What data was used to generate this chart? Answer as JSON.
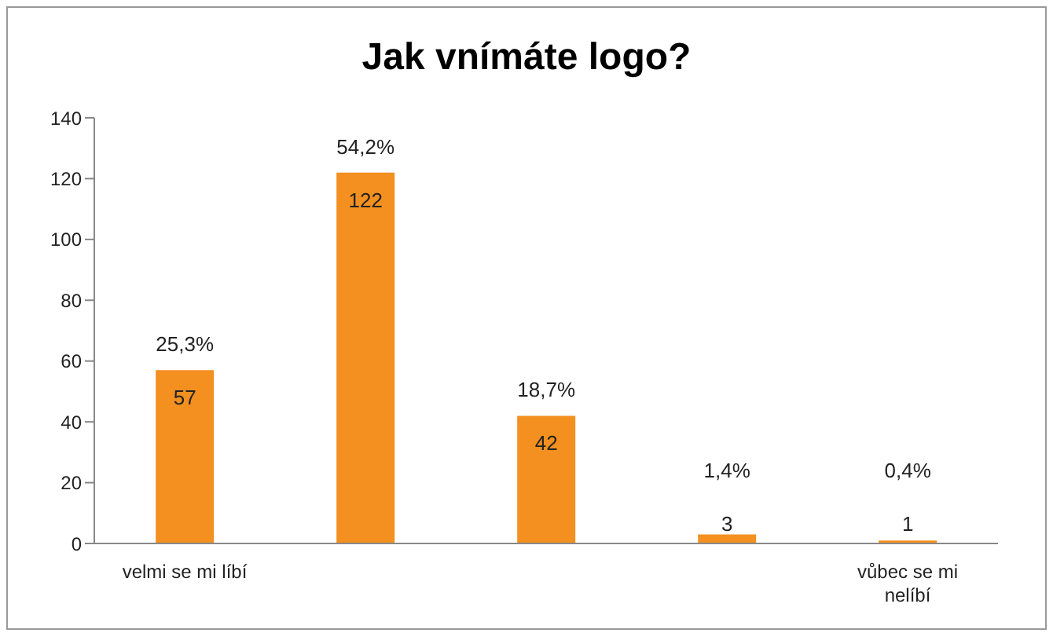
{
  "chart_data": {
    "type": "bar",
    "title": "Jak vnímáte logo?",
    "categories": [
      "velmi se mi líbí",
      null,
      null,
      null,
      "vůbec se mi nelíbí"
    ],
    "values": [
      57,
      122,
      42,
      3,
      1
    ],
    "color": "#f39020",
    "data_labels": true,
    "annotations": [
      "25,3%",
      "54,2%",
      "18,7%",
      "1,4%",
      "0,4%"
    ],
    "ylim": [
      0,
      140
    ],
    "yticks": [
      0,
      20,
      40,
      60,
      80,
      100,
      120,
      140
    ],
    "grid": false,
    "legend": false
  }
}
